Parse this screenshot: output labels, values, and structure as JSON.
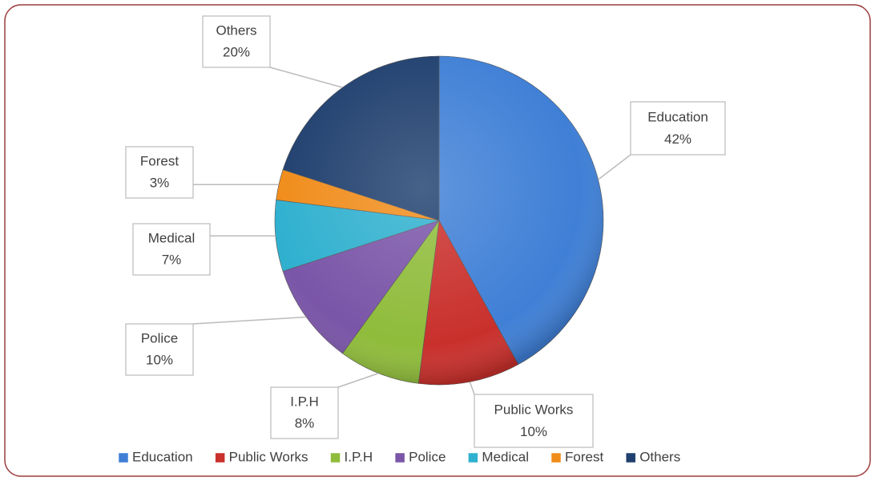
{
  "chart_data": {
    "type": "pie",
    "categories": [
      "Education",
      "Public Works",
      "I.P.H",
      "Police",
      "Medical",
      "Forest",
      "Others"
    ],
    "values": [
      42,
      10,
      8,
      10,
      7,
      3,
      20
    ],
    "value_labels": [
      "42%",
      "10%",
      "8%",
      "10%",
      "7%",
      "3%",
      "20%"
    ],
    "colors": [
      "#3f7fd6",
      "#c9302c",
      "#8fbc3b",
      "#7a55a8",
      "#2fb0cf",
      "#f08c1a",
      "#1f3f6e"
    ],
    "legend": "bottom"
  }
}
